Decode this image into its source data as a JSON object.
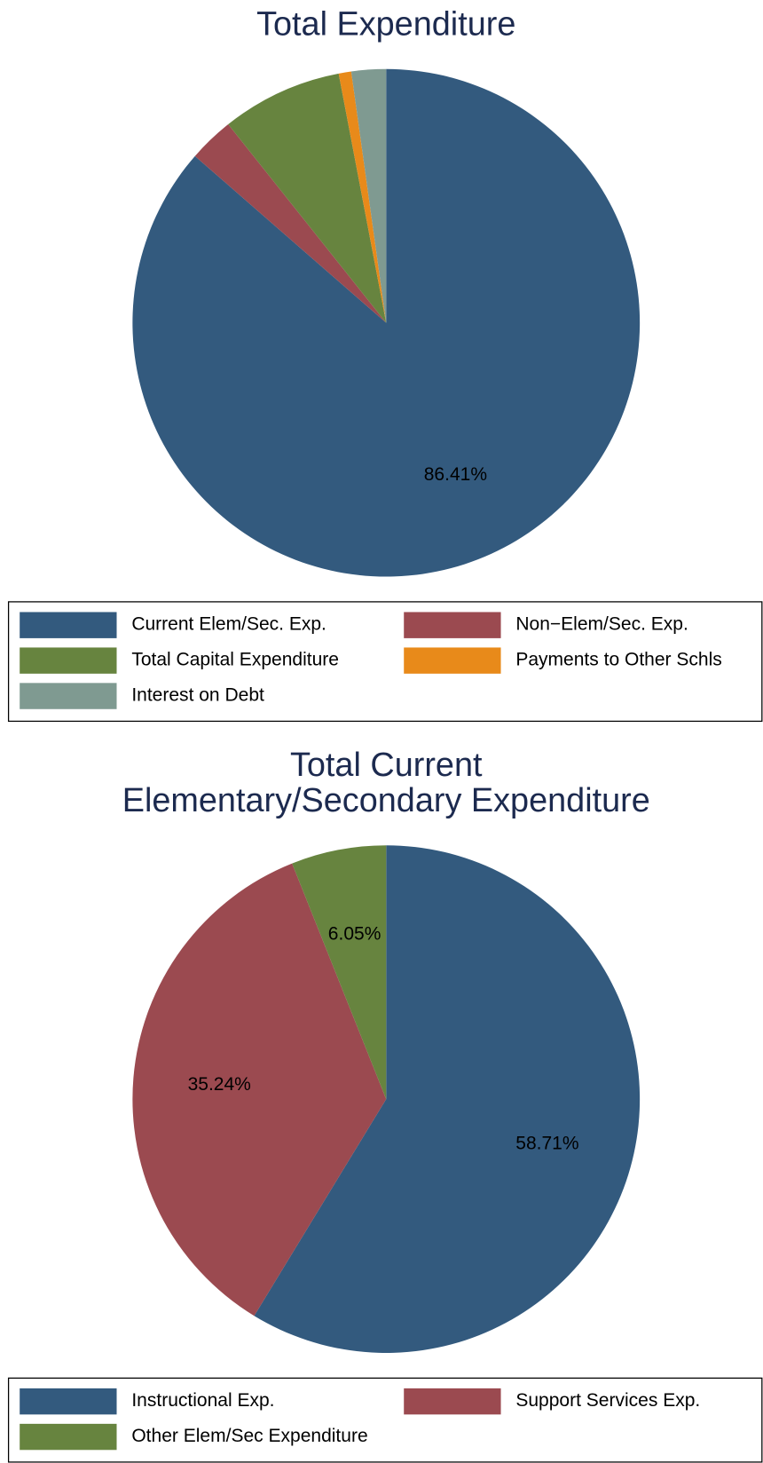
{
  "chart_data": [
    {
      "type": "pie",
      "title": [
        "Total Expenditure"
      ],
      "categories": [
        "Current Elem/Sec. Exp.",
        "Non−Elem/Sec. Exp.",
        "Total Capital Expenditure",
        "Payments to Other Schls",
        "Interest on Debt"
      ],
      "values": [
        86.41,
        2.89,
        7.7,
        0.8,
        2.2
      ],
      "value_labels": [
        "86.41%",
        null,
        null,
        null,
        null
      ],
      "colors": [
        "#335a7e",
        "#9b4a50",
        "#67843f",
        "#e88a1a",
        "#7f9a91"
      ]
    },
    {
      "type": "pie",
      "title": [
        "Total Current",
        "Elementary/Secondary Expenditure"
      ],
      "categories": [
        "Instructional Exp.",
        "Support Services Exp.",
        "Other Elem/Sec Expenditure"
      ],
      "values": [
        58.71,
        35.24,
        6.05
      ],
      "value_labels": [
        "58.71%",
        "35.24%",
        "6.05%"
      ],
      "colors": [
        "#335a7e",
        "#9b4a50",
        "#67843f"
      ]
    }
  ]
}
